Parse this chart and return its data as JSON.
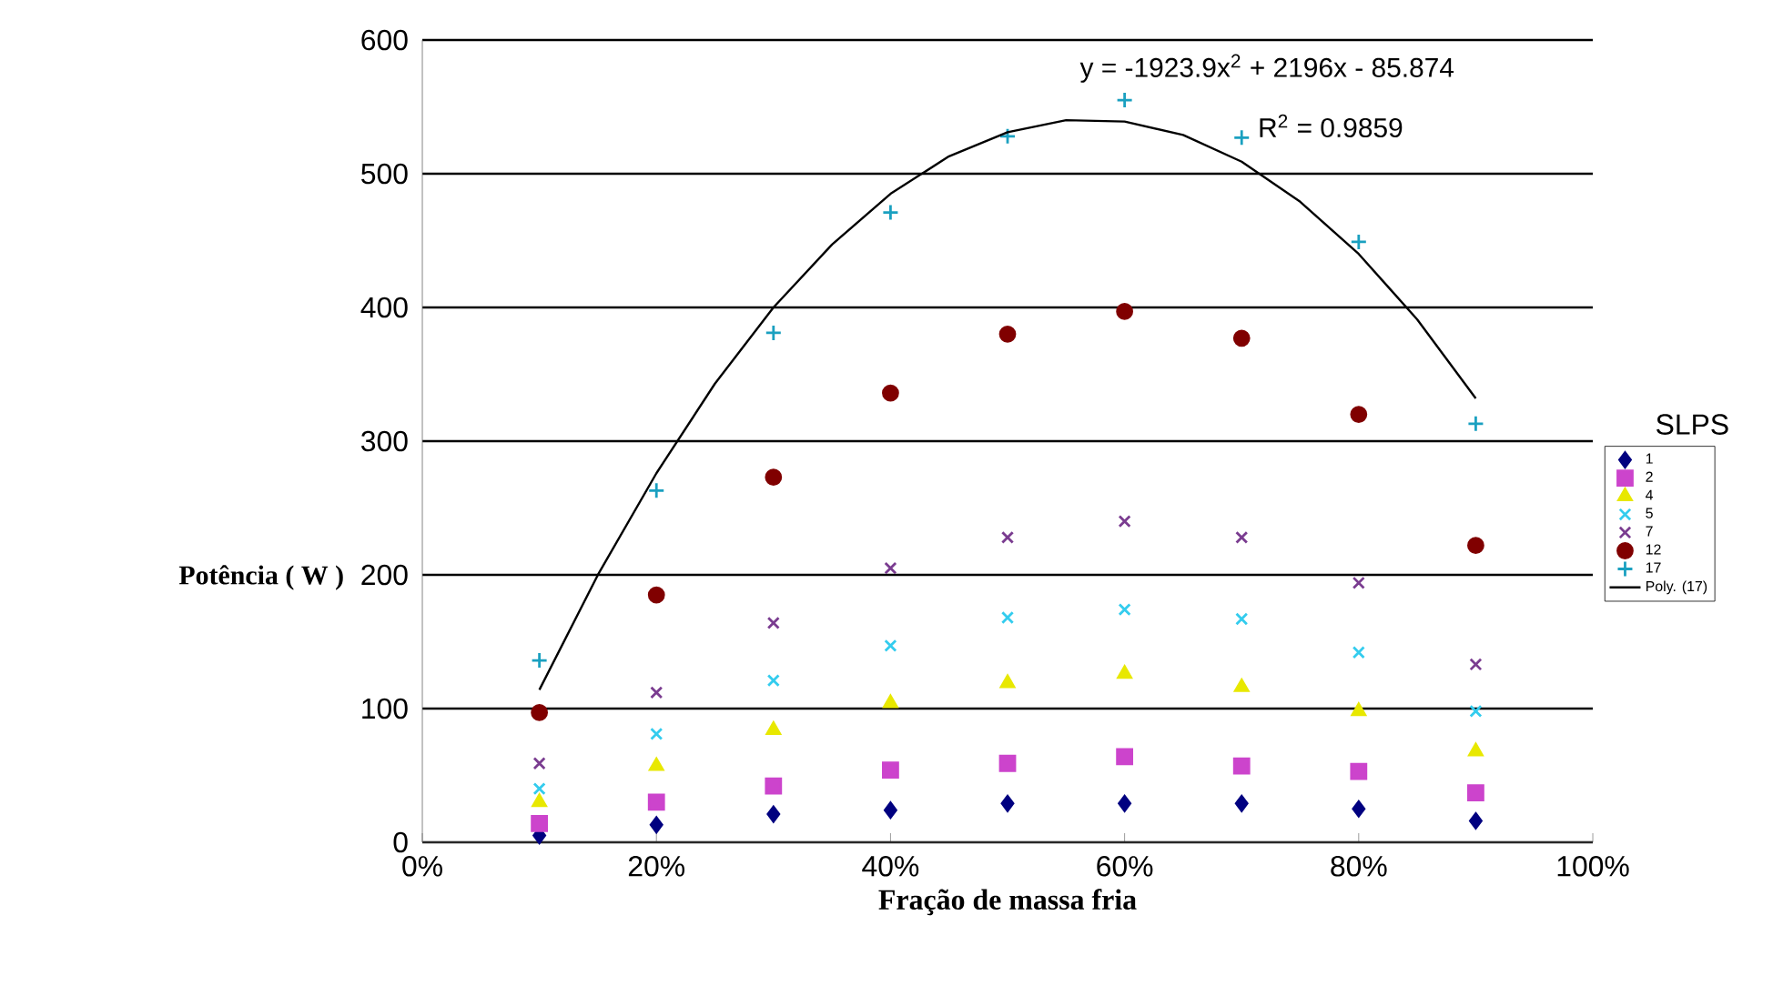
{
  "chart_data": {
    "type": "scatter",
    "xlabel": "Fração de massa fria",
    "ylabel": "Potência ( W )",
    "legend_title": "SLPS",
    "x": [
      0.1,
      0.2,
      0.3,
      0.4,
      0.5,
      0.6,
      0.7,
      0.8,
      0.9
    ],
    "xlim": [
      0,
      1
    ],
    "xticks": [
      {
        "value": 0,
        "label": "0%"
      },
      {
        "value": 0.2,
        "label": "20%"
      },
      {
        "value": 0.4,
        "label": "40%"
      },
      {
        "value": 0.6,
        "label": "60%"
      },
      {
        "value": 0.8,
        "label": "80%"
      },
      {
        "value": 1,
        "label": "100%"
      }
    ],
    "ylim": [
      0,
      600
    ],
    "yticks": [
      0,
      100,
      200,
      300,
      400,
      500,
      600
    ],
    "grid": "y",
    "legend": "right",
    "series": [
      {
        "name": "1",
        "color": "#000080",
        "marker": "diamond",
        "values": [
          5,
          13,
          21,
          24,
          29,
          29,
          29,
          25,
          16
        ]
      },
      {
        "name": "2",
        "color": "#cc44cc",
        "marker": "square",
        "values": [
          14,
          30,
          42,
          54,
          59,
          64,
          57,
          53,
          37
        ]
      },
      {
        "name": "4",
        "color": "#e8e800",
        "marker": "triangle",
        "values": [
          30,
          57,
          84,
          104,
          119,
          126,
          116,
          98,
          68
        ]
      },
      {
        "name": "5",
        "color": "#33ccee",
        "marker": "cross",
        "values": [
          40,
          81,
          121,
          147,
          168,
          174,
          167,
          142,
          98
        ]
      },
      {
        "name": "7",
        "color": "#7a3c90",
        "marker": "cross",
        "values": [
          59,
          112,
          164,
          205,
          228,
          240,
          228,
          194,
          133
        ]
      },
      {
        "name": "12",
        "color": "#800000",
        "marker": "circle",
        "values": [
          97,
          185,
          273,
          336,
          380,
          397,
          377,
          320,
          222
        ]
      },
      {
        "name": "17",
        "color": "#1aa0c0",
        "marker": "plus",
        "values": [
          136,
          263,
          381,
          471,
          528,
          555,
          527,
          449,
          313
        ]
      },
      {
        "name": "Poly. (17)",
        "type": "line",
        "color": "#000000",
        "marker": "none",
        "line_style": "solid",
        "x": [
          0.1,
          0.15,
          0.2,
          0.25,
          0.3,
          0.35,
          0.4,
          0.45,
          0.5,
          0.55,
          0.6,
          0.65,
          0.7,
          0.75,
          0.8,
          0.85,
          0.9
        ],
        "values": [
          114,
          200,
          276,
          343,
          400,
          447,
          485,
          513,
          531,
          540,
          539,
          529,
          509,
          479,
          440,
          391,
          332
        ]
      }
    ],
    "annotations": [
      "y = -1923.9x$^{2}$ + 2196x - 85.874",
      "R$^{2}$ = 0.9859"
    ]
  }
}
